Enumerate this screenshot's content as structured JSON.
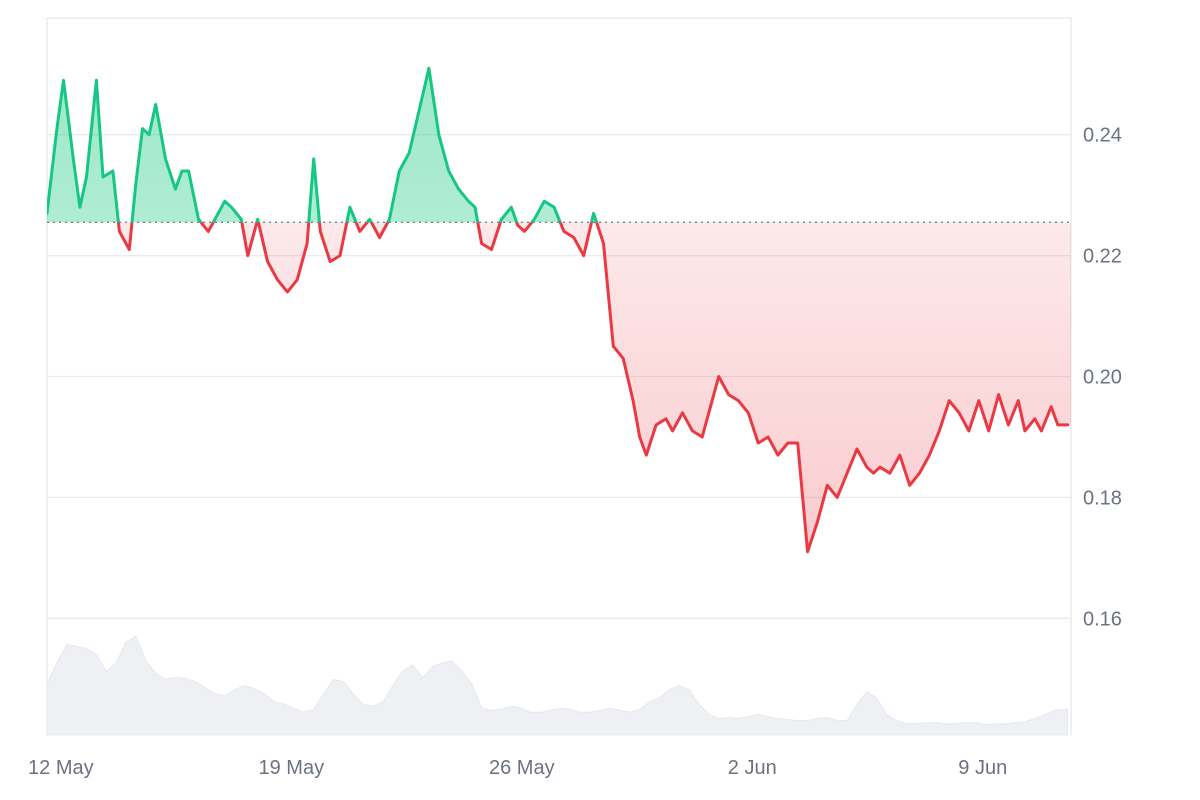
{
  "chart_data": {
    "type": "area",
    "y_axis": {
      "position": "right",
      "ticks": [
        0.16,
        0.18,
        0.2,
        0.22,
        0.24
      ],
      "tick_labels": [
        "0.16",
        "0.18",
        "0.20",
        "0.22",
        "0.24"
      ],
      "range": [
        0.1407,
        0.2593
      ]
    },
    "x_axis": {
      "tick_labels": [
        "12 May",
        "19 May",
        "26 May",
        "2 Jun",
        "9 Jun"
      ],
      "tick_positions_day": [
        0.42,
        7.42,
        14.42,
        21.42,
        28.42
      ],
      "range_days": [
        0,
        31.1
      ]
    },
    "baseline": {
      "value": 0.2255,
      "style": "dotted"
    },
    "colors": {
      "above": "#16c784",
      "below": "#ea3943",
      "volume": "#eef0f3",
      "grid": "#e9ebee",
      "tick_text": "#6b7280"
    },
    "price_series": {
      "x": [
        0,
        0.3,
        0.5,
        0.8,
        1.0,
        1.2,
        1.5,
        1.7,
        2.0,
        2.2,
        2.5,
        2.7,
        2.9,
        3.1,
        3.3,
        3.6,
        3.9,
        4.1,
        4.3,
        4.6,
        4.9,
        5.1,
        5.4,
        5.6,
        5.9,
        6.1,
        6.4,
        6.7,
        7.0,
        7.3,
        7.6,
        7.9,
        8.1,
        8.3,
        8.6,
        8.9,
        9.2,
        9.5,
        9.8,
        10.1,
        10.4,
        10.7,
        11.0,
        11.3,
        11.6,
        11.9,
        12.2,
        12.5,
        12.8,
        13.0,
        13.2,
        13.5,
        13.8,
        14.1,
        14.3,
        14.5,
        14.8,
        15.1,
        15.4,
        15.7,
        16.0,
        16.3,
        16.6,
        16.9,
        17.2,
        17.5,
        17.8,
        18.0,
        18.2,
        18.5,
        18.8,
        19.0,
        19.3,
        19.6,
        19.9,
        20.1,
        20.4,
        20.7,
        21.0,
        21.3,
        21.6,
        21.9,
        22.2,
        22.5,
        22.8,
        23.1,
        23.4,
        23.7,
        24.0,
        24.3,
        24.6,
        24.9,
        25.1,
        25.3,
        25.6,
        25.9,
        26.2,
        26.5,
        26.8,
        27.1,
        27.4,
        27.7,
        28.0,
        28.3,
        28.6,
        28.9,
        29.2,
        29.5,
        29.7,
        30.0,
        30.2,
        30.5,
        30.7,
        31.0
      ],
      "y": [
        0.227,
        0.241,
        0.249,
        0.236,
        0.228,
        0.233,
        0.249,
        0.233,
        0.234,
        0.224,
        0.221,
        0.232,
        0.241,
        0.24,
        0.245,
        0.236,
        0.231,
        0.234,
        0.234,
        0.226,
        0.224,
        0.226,
        0.229,
        0.228,
        0.226,
        0.22,
        0.226,
        0.219,
        0.216,
        0.214,
        0.216,
        0.222,
        0.236,
        0.224,
        0.219,
        0.22,
        0.228,
        0.224,
        0.226,
        0.223,
        0.226,
        0.234,
        0.237,
        0.244,
        0.251,
        0.24,
        0.234,
        0.231,
        0.229,
        0.228,
        0.222,
        0.221,
        0.226,
        0.228,
        0.225,
        0.224,
        0.226,
        0.229,
        0.228,
        0.224,
        0.223,
        0.22,
        0.227,
        0.222,
        0.205,
        0.203,
        0.196,
        0.19,
        0.187,
        0.192,
        0.193,
        0.191,
        0.194,
        0.191,
        0.19,
        0.194,
        0.2,
        0.197,
        0.196,
        0.194,
        0.189,
        0.19,
        0.187,
        0.189,
        0.189,
        0.171,
        0.176,
        0.182,
        0.18,
        0.184,
        0.188,
        0.185,
        0.184,
        0.185,
        0.184,
        0.187,
        0.182,
        0.184,
        0.187,
        0.191,
        0.196,
        0.194,
        0.191,
        0.196,
        0.191,
        0.197,
        0.192,
        0.196,
        0.191,
        0.193,
        0.191,
        0.195,
        0.192,
        0.192
      ]
    },
    "volume_series": {
      "x": [
        0,
        0.3,
        0.6,
        0.9,
        1.2,
        1.5,
        1.8,
        2.1,
        2.4,
        2.7,
        3.0,
        3.3,
        3.6,
        3.9,
        4.2,
        4.5,
        4.8,
        5.1,
        5.4,
        5.7,
        6.0,
        6.3,
        6.6,
        6.9,
        7.2,
        7.5,
        7.8,
        8.1,
        8.4,
        8.7,
        9.0,
        9.3,
        9.6,
        9.9,
        10.2,
        10.5,
        10.8,
        11.1,
        11.4,
        11.7,
        12.0,
        12.3,
        12.6,
        12.9,
        13.2,
        13.5,
        13.8,
        14.1,
        14.4,
        14.7,
        15.0,
        15.3,
        15.6,
        15.9,
        16.2,
        16.5,
        16.8,
        17.1,
        17.4,
        17.7,
        18.0,
        18.3,
        18.6,
        18.9,
        19.2,
        19.5,
        19.8,
        20.1,
        20.4,
        20.7,
        21.0,
        21.3,
        21.6,
        21.9,
        22.2,
        22.5,
        22.8,
        23.1,
        23.4,
        23.7,
        24.0,
        24.3,
        24.6,
        24.9,
        25.2,
        25.5,
        25.8,
        26.1,
        26.4,
        26.7,
        27.0,
        27.3,
        27.6,
        27.9,
        28.2,
        28.5,
        28.8,
        29.1,
        29.4,
        29.7,
        30.0,
        30.3,
        30.6,
        31.0
      ],
      "v": [
        0.5,
        0.7,
        0.88,
        0.86,
        0.84,
        0.78,
        0.62,
        0.7,
        0.9,
        0.96,
        0.72,
        0.6,
        0.54,
        0.56,
        0.55,
        0.52,
        0.46,
        0.4,
        0.38,
        0.44,
        0.48,
        0.45,
        0.4,
        0.32,
        0.3,
        0.26,
        0.22,
        0.25,
        0.4,
        0.54,
        0.52,
        0.4,
        0.3,
        0.28,
        0.32,
        0.48,
        0.62,
        0.68,
        0.56,
        0.66,
        0.7,
        0.72,
        0.62,
        0.5,
        0.26,
        0.24,
        0.25,
        0.28,
        0.26,
        0.22,
        0.22,
        0.24,
        0.26,
        0.25,
        0.22,
        0.22,
        0.24,
        0.26,
        0.24,
        0.22,
        0.25,
        0.32,
        0.36,
        0.44,
        0.48,
        0.44,
        0.3,
        0.2,
        0.16,
        0.17,
        0.16,
        0.18,
        0.2,
        0.18,
        0.16,
        0.15,
        0.14,
        0.14,
        0.16,
        0.17,
        0.14,
        0.14,
        0.3,
        0.42,
        0.36,
        0.2,
        0.14,
        0.11,
        0.11,
        0.12,
        0.12,
        0.11,
        0.11,
        0.12,
        0.12,
        0.1,
        0.11,
        0.11,
        0.12,
        0.13,
        0.16,
        0.2,
        0.24,
        0.25
      ]
    }
  }
}
